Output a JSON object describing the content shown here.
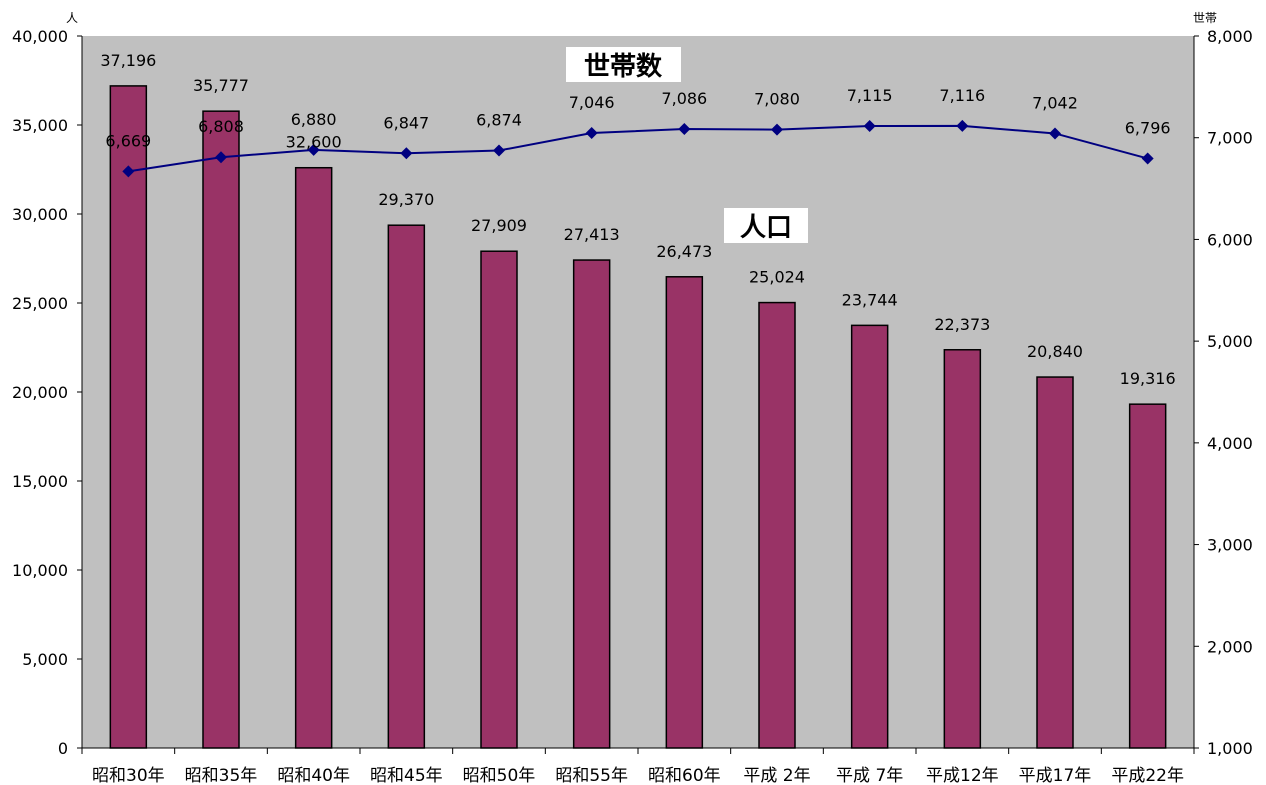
{
  "colors": {
    "plot_background": "#c0c0c0",
    "bar_fill": "#993366",
    "line": "#000080",
    "marker": "#000080"
  },
  "chart_data": {
    "type": "bar",
    "categories": [
      "昭和30年",
      "昭和35年",
      "昭和40年",
      "昭和45年",
      "昭和50年",
      "昭和55年",
      "昭和60年",
      "平成 2年",
      "平成 7年",
      "平成12年",
      "平成17年",
      "平成22年"
    ],
    "series": [
      {
        "name": "人口",
        "type": "bar",
        "axis": "left",
        "values": [
          37196,
          35777,
          32600,
          29370,
          27909,
          27413,
          26473,
          25024,
          23744,
          22373,
          20840,
          19316
        ]
      },
      {
        "name": "世帯数",
        "type": "line",
        "axis": "right",
        "values": [
          6669,
          6808,
          6880,
          6847,
          6874,
          7046,
          7086,
          7080,
          7115,
          7116,
          7042,
          6796
        ]
      }
    ],
    "value_labels": {
      "population": [
        "37,196",
        "35,777",
        "32,600",
        "29,370",
        "27,909",
        "27,413",
        "26,473",
        "25,024",
        "23,744",
        "22,373",
        "20,840",
        "19,316"
      ],
      "households": [
        "6,669",
        "6,808",
        "6,880",
        "6,847",
        "6,874",
        "7,046",
        "7,086",
        "7,080",
        "7,115",
        "7,116",
        "7,042",
        "6,796"
      ]
    },
    "y_left": {
      "unit": "人",
      "lim": [
        0,
        40000
      ],
      "ticks": [
        0,
        5000,
        10000,
        15000,
        20000,
        25000,
        30000,
        35000,
        40000
      ],
      "tick_labels": [
        "0",
        "5,000",
        "10,000",
        "15,000",
        "20,000",
        "25,000",
        "30,000",
        "35,000",
        "40,000"
      ]
    },
    "y_right": {
      "unit": "世帯",
      "lim": [
        1000,
        8000
      ],
      "ticks": [
        1000,
        2000,
        3000,
        4000,
        5000,
        6000,
        7000,
        8000
      ],
      "tick_labels": [
        "1,000",
        "2,000",
        "3,000",
        "4,000",
        "5,000",
        "6,000",
        "7,000",
        "8,000"
      ]
    },
    "grid": false,
    "legend": "none",
    "annotations": [
      {
        "text": "世帯数",
        "series": "世帯数"
      },
      {
        "text": "人口",
        "series": "人口"
      }
    ]
  }
}
